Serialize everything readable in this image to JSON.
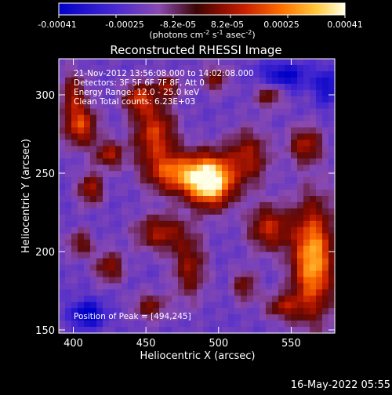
{
  "colorbar": {
    "ticks": [
      "-0.00041",
      "-0.00025",
      "-8.2e-05",
      "8.2e-05",
      "0.00025",
      "0.00041"
    ],
    "unit_main": "(photons cm",
    "unit_sup1": "-2",
    "unit_mid1": " s",
    "unit_sup2": "-1",
    "unit_mid2": " asec",
    "unit_sup3": "-2",
    "unit_end": ")"
  },
  "header": {
    "lines": [
      "21-Nov-2012 13:56:08.000 to 14:02:08.000",
      "Detectors: 3F 5F 6F 7F 8F, Att 0",
      "Energy Range: 12.0 - 25.0 keV",
      "Clean     Total counts: 6.23E+03"
    ],
    "peak": "Position of Peak = [494,245]"
  },
  "footer": {
    "date": "16-May-2022 05:55"
  },
  "colors": {
    "background": "#000000",
    "axes": "#ffffff",
    "scale": [
      "#0000c8",
      "#5a3cc8",
      "#8a4ab0",
      "#5a0a0a",
      "#aa1a00",
      "#e04000",
      "#ff8a00",
      "#ffd23c",
      "#ffffdc"
    ]
  },
  "chart_data": {
    "type": "heatmap",
    "title": "Reconstructed RHESSI Image",
    "xlabel": "Heliocentric X (arcsec)",
    "ylabel": "Heliocentric Y (arcsec)",
    "xlim": [
      390,
      580
    ],
    "ylim": [
      148,
      323
    ],
    "xticks": [
      400,
      450,
      500,
      550
    ],
    "yticks": [
      150,
      200,
      250,
      300
    ],
    "colorbar_range": [
      -0.00041,
      0.00041
    ],
    "peak": {
      "x": 494,
      "y": 245
    },
    "features": [
      {
        "x": 494,
        "y": 245,
        "sx": 11,
        "sy": 11,
        "amp": 1.0
      },
      {
        "x": 470,
        "y": 250,
        "sx": 13,
        "sy": 9,
        "amp": 0.55
      },
      {
        "x": 456,
        "y": 275,
        "sx": 10,
        "sy": 14,
        "amp": 0.5
      },
      {
        "x": 445,
        "y": 298,
        "sx": 7,
        "sy": 7,
        "amp": 0.45
      },
      {
        "x": 465,
        "y": 305,
        "sx": 6,
        "sy": 5,
        "amp": 0.35
      },
      {
        "x": 520,
        "y": 260,
        "sx": 10,
        "sy": 12,
        "amp": 0.4
      },
      {
        "x": 535,
        "y": 300,
        "sx": 7,
        "sy": 6,
        "amp": 0.3
      },
      {
        "x": 560,
        "y": 268,
        "sx": 8,
        "sy": 8,
        "amp": 0.4
      },
      {
        "x": 405,
        "y": 280,
        "sx": 8,
        "sy": 9,
        "amp": 0.5
      },
      {
        "x": 425,
        "y": 262,
        "sx": 7,
        "sy": 6,
        "amp": 0.4
      },
      {
        "x": 412,
        "y": 240,
        "sx": 6,
        "sy": 7,
        "amp": 0.4
      },
      {
        "x": 400,
        "y": 300,
        "sx": 6,
        "sy": 10,
        "amp": 0.35
      },
      {
        "x": 460,
        "y": 212,
        "sx": 12,
        "sy": 8,
        "amp": 0.4
      },
      {
        "x": 480,
        "y": 190,
        "sx": 8,
        "sy": 14,
        "amp": 0.35
      },
      {
        "x": 425,
        "y": 190,
        "sx": 7,
        "sy": 7,
        "amp": 0.35
      },
      {
        "x": 405,
        "y": 205,
        "sx": 6,
        "sy": 6,
        "amp": 0.3
      },
      {
        "x": 535,
        "y": 215,
        "sx": 10,
        "sy": 10,
        "amp": 0.45
      },
      {
        "x": 565,
        "y": 195,
        "sx": 10,
        "sy": 25,
        "amp": 0.75
      },
      {
        "x": 545,
        "y": 165,
        "sx": 9,
        "sy": 6,
        "amp": 0.35
      },
      {
        "x": 518,
        "y": 178,
        "sx": 6,
        "sy": 7,
        "amp": 0.3
      },
      {
        "x": 453,
        "y": 165,
        "sx": 8,
        "sy": 6,
        "amp": 0.3
      },
      {
        "x": 498,
        "y": 310,
        "sx": 6,
        "sy": 6,
        "amp": 0.3
      },
      {
        "x": 410,
        "y": 160,
        "sx": 8,
        "sy": 6,
        "amp": -0.4
      },
      {
        "x": 545,
        "y": 312,
        "sx": 12,
        "sy": 6,
        "amp": -0.35
      },
      {
        "x": 575,
        "y": 305,
        "sx": 6,
        "sy": 8,
        "amp": -0.3
      }
    ]
  }
}
